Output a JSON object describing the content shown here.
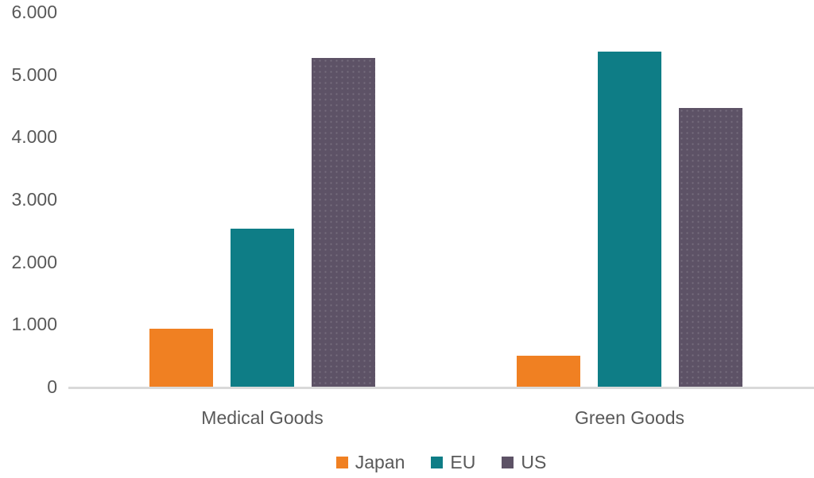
{
  "chart_data": {
    "type": "bar",
    "title": "",
    "xlabel": "",
    "ylabel": "",
    "categories": [
      "Medical Goods",
      "Green Goods"
    ],
    "series": [
      {
        "name": "Japan",
        "color": "#F08022",
        "values": [
          930,
          500
        ]
      },
      {
        "name": "EU",
        "color": "#0E7D86",
        "values": [
          2530,
          5370
        ]
      },
      {
        "name": "US",
        "color": "#5D5266",
        "values": [
          5260,
          4460
        ]
      }
    ],
    "y_ticks": [
      {
        "label": "6.000",
        "value": 6000
      },
      {
        "label": "5.000",
        "value": 5000
      },
      {
        "label": "4.000",
        "value": 4000
      },
      {
        "label": "3.000",
        "value": 3000
      },
      {
        "label": "2.000",
        "value": 2000
      },
      {
        "label": "1.000",
        "value": 1000
      },
      {
        "label": "0",
        "value": 0
      }
    ],
    "ylim": [
      0,
      6000
    ],
    "grid": false,
    "legend_position": "bottom",
    "axis_color": "#D9D9D9",
    "text_color": "#595959"
  }
}
